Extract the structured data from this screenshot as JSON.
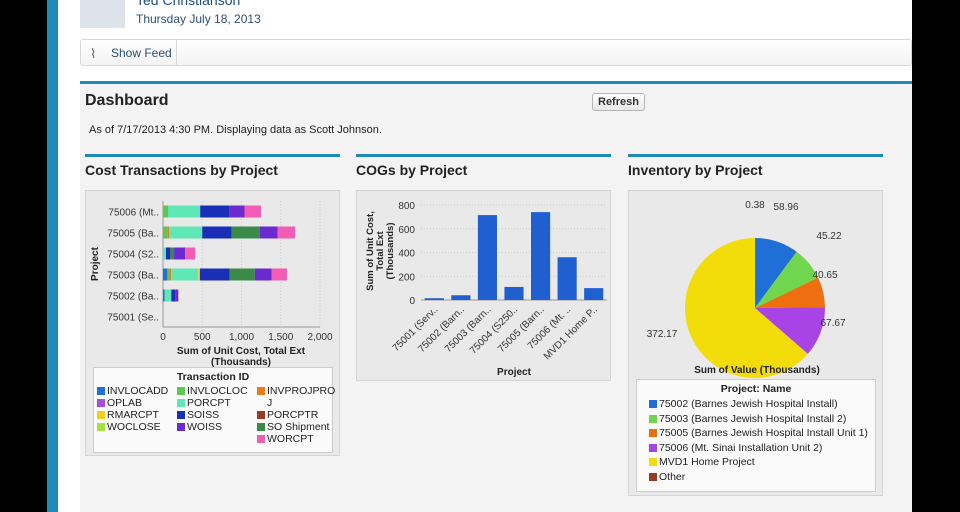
{
  "header": {
    "user_name": "Ted Christianson",
    "date": "Thursday July 18, 2013",
    "show_feed": "Show Feed"
  },
  "dashboard": {
    "title": "Dashboard",
    "refresh": "Refresh",
    "as_of": "As of 7/17/2013 4:30 PM. Displaying data as Scott Johnson."
  },
  "colors": {
    "accent": "#1f8ab8"
  },
  "chart_data": [
    {
      "type": "bar",
      "orientation": "horizontal",
      "stacked": true,
      "title": "Cost Transactions by Project",
      "categories": [
        "75006 (Mt..",
        "75005 (Ba..",
        "75004 (S2..",
        "75003 (Ba..",
        "75002 (Ba..",
        "75001 (Se.."
      ],
      "ylabel": "Project",
      "xlabel": "Sum of Unit Cost, Total Ext (Thousands)",
      "xlim": [
        0,
        2000
      ],
      "xticks": [
        "0",
        "500",
        "1,000",
        "1,500",
        "2,000"
      ],
      "legend_title": "Transaction ID",
      "series": [
        {
          "name": "INVLOCADD",
          "color": "#1f6fd6",
          "values": [
            0,
            0,
            0,
            56,
            21,
            0
          ]
        },
        {
          "name": "INVLOCLOC",
          "color": "#5cc94e",
          "values": [
            68,
            60,
            0,
            26,
            0,
            0
          ]
        },
        {
          "name": "INVPROJPROJ",
          "label": "INVPROJPRO J",
          "color": "#ee7a1a",
          "values": [
            0,
            17,
            0,
            21,
            0,
            0
          ]
        },
        {
          "name": "OPLAB",
          "color": "#a84ee0",
          "values": [
            0,
            0,
            0,
            0,
            0,
            0
          ]
        },
        {
          "name": "PORCPT",
          "color": "#5ee8b8",
          "values": [
            406,
            423,
            38,
            346,
            85,
            0
          ]
        },
        {
          "name": "PORCPTR",
          "color": "#9b3a22",
          "values": [
            0,
            0,
            0,
            0,
            0,
            0
          ]
        },
        {
          "name": "RMARCPT",
          "color": "#f4cf12",
          "values": [
            0,
            0,
            0,
            21,
            0,
            0
          ]
        },
        {
          "name": "SOISS",
          "color": "#1a2fb8",
          "values": [
            376,
            372,
            56,
            380,
            51,
            0
          ]
        },
        {
          "name": "SO Shipment",
          "color": "#3a8a48",
          "values": [
            0,
            363,
            47,
            320,
            0,
            0
          ]
        },
        {
          "name": "WOCLOSE",
          "color": "#a6e03a",
          "values": [
            0,
            0,
            0,
            0,
            0,
            0
          ]
        },
        {
          "name": "WOISS",
          "color": "#6a2ad0",
          "values": [
            188,
            226,
            141,
            213,
            38,
            0
          ]
        },
        {
          "name": "WORCPT",
          "color": "#f25cb2",
          "values": [
            210,
            222,
            128,
            196,
            0,
            0
          ]
        }
      ]
    },
    {
      "type": "bar",
      "title": "COGs by Project",
      "categories": [
        "75001 (Serv..",
        "75002 (Barn..",
        "75003 (Barn..",
        "75004 (S250..",
        "75005 (Barn..",
        "75006 (Mt. ..",
        "MVD1 Home P.."
      ],
      "values": [
        15,
        40,
        715,
        110,
        740,
        360,
        100
      ],
      "ylabel": "Sum of Unit Cost, Total Ext (Thousands)",
      "xlabel": "Project",
      "ylim": [
        0,
        800
      ],
      "yticks": [
        "0",
        "200",
        "400",
        "600",
        "800"
      ],
      "color": "#1f5fcf"
    },
    {
      "type": "pie",
      "title": "Inventory by Project",
      "xlabel": "Sum of Value (Thousands)",
      "legend_title": "Project: Name",
      "slices": [
        {
          "name": "Other",
          "value": 0.38,
          "label": "0.38",
          "color": "#9b3a22"
        },
        {
          "name": "75002 (Barnes Jewish Hospital Install)",
          "value": 58.96,
          "label": "58.96",
          "color": "#1f6fd6"
        },
        {
          "name": "75003 (Barnes Jewish Hospital Install 2)",
          "value": 45.22,
          "label": "45.22",
          "color": "#6fd64e"
        },
        {
          "name": "75005 (Barnes Jewish Hospital Install Unit 1)",
          "value": 40.65,
          "label": "40.65",
          "color": "#ee6f10"
        },
        {
          "name": "75006 (Mt. Sinai Installation Unit 2)",
          "value": 67.67,
          "label": "67.67",
          "color": "#a844e6"
        },
        {
          "name": "MVD1 Home Project",
          "value": 372.17,
          "label": "372.17",
          "color": "#f2dc0a"
        }
      ],
      "legend_order": [
        1,
        2,
        3,
        4,
        5,
        0
      ]
    }
  ]
}
